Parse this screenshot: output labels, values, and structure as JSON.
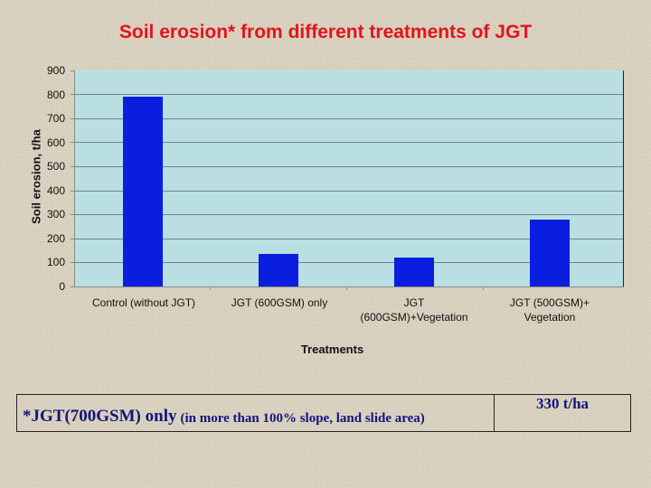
{
  "title": "Soil erosion* from different treatments of JGT",
  "chart_data": {
    "type": "bar",
    "title": "Soil erosion* from different treatments of JGT",
    "xlabel": "Treatments",
    "ylabel": "Soil erosion, t/ha",
    "categories": [
      "Control (without JGT)",
      "JGT (600GSM) only",
      "JGT (600GSM)+Vegetation",
      "JGT (500GSM)+ Vegetation"
    ],
    "values": [
      792,
      135,
      120,
      280
    ],
    "ylim": [
      0,
      900
    ],
    "yticks": [
      0,
      100,
      200,
      300,
      400,
      500,
      600,
      700,
      800,
      900
    ],
    "grid": true,
    "legend": null,
    "bar_color": "#0a1ee0",
    "plot_background": "#b9dfe3"
  },
  "axis": {
    "ylabel": "Soil erosion, t/ha",
    "xlabel": "Treatments",
    "yticks": [
      "900",
      "800",
      "700",
      "600",
      "500",
      "400",
      "300",
      "200",
      "100",
      "0"
    ]
  },
  "categories": {
    "c0": {
      "line1": "Control (without JGT)",
      "line2": ""
    },
    "c1": {
      "line1": "JGT (600GSM) only",
      "line2": ""
    },
    "c2": {
      "line1": "JGT",
      "line2": "(600GSM)+Vegetation"
    },
    "c3": {
      "line1": "JGT (500GSM)+",
      "line2": "Vegetation"
    }
  },
  "footnote": {
    "main": "*JGT(700GSM) only",
    "detail": "(in more than 100% slope, land slide area)",
    "value": "330 t/ha"
  }
}
